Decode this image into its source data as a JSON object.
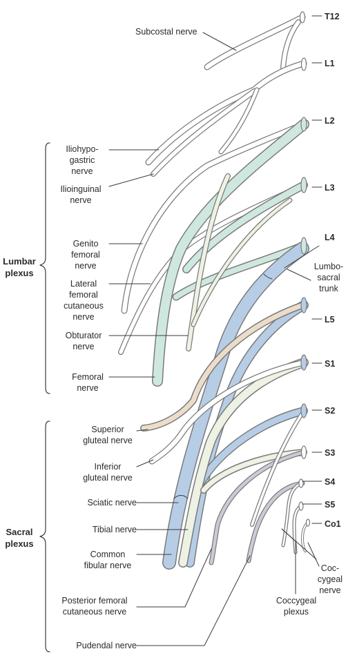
{
  "segments": {
    "t12": "T12",
    "l1": "L1",
    "l2": "L2",
    "l3": "L3",
    "l4": "L4",
    "l5": "L5",
    "s1": "S1",
    "s2": "S2",
    "s3": "S3",
    "s4": "S4",
    "s5": "S5",
    "co1": "Co1"
  },
  "groups": {
    "lumbar_1": "Lumbar",
    "lumbar_2": "plexus",
    "sacral_1": "Sacral",
    "sacral_2": "plexus"
  },
  "labels": {
    "subcostal": "Subcostal nerve",
    "iliohypo_1": "Iliohypo-",
    "iliohypo_2": "gastric",
    "iliohypo_3": "nerve",
    "ilioing_1": "Ilioinguinal",
    "ilioing_2": "nerve",
    "genito_1": "Genito",
    "genito_2": "femoral",
    "genito_3": "nerve",
    "lfc_1": "Lateral",
    "lfc_2": "femoral",
    "lfc_3": "cutaneous",
    "lfc_4": "nerve",
    "obt_1": "Obturator",
    "obt_2": "nerve",
    "fem_1": "Femoral",
    "fem_2": "nerve",
    "lumbosacral_1": "Lumbo-",
    "lumbosacral_2": "sacral",
    "lumbosacral_3": "trunk",
    "supglut_1": "Superior",
    "supglut_2": "gluteal nerve",
    "infglut_1": "Inferior",
    "infglut_2": "gluteal nerve",
    "sciatic": "Sciatic nerve",
    "tibial": "Tibial nerve",
    "cfib_1": "Common",
    "cfib_2": "fibular nerve",
    "pfc_1": "Posterior femoral",
    "pfc_2": "cutaneous nerve",
    "pudendal": "Pudendal nerve",
    "coccyg_1": "Coc-",
    "coccyg_2": "cygeal",
    "coccyg_3": "nerve",
    "coccplex_1": "Coccygeal",
    "coccplex_2": "plexus"
  },
  "colors": {
    "outline": "#7a7a7a",
    "leader": "#3a3a3a",
    "femoral_fill": "#cfe8df",
    "sciatic_fill": "#b7cde6",
    "tibial_fill": "#eef2e4",
    "gluteal_fill": "#ecdcca",
    "pudendal_fill": "#c9ccd6",
    "plain_fill": "#ffffff"
  }
}
